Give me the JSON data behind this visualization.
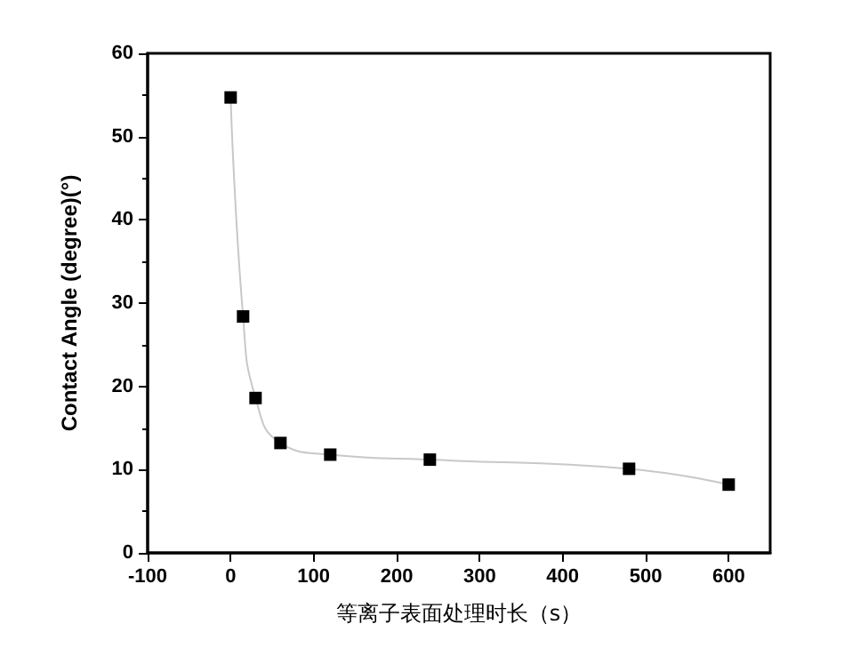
{
  "chart_data": {
    "type": "line",
    "xlabel": "等离子表面处理时长（s）",
    "ylabel": "Contact Angle (degree)(°)",
    "x": [
      0,
      15,
      30,
      60,
      120,
      240,
      480,
      600
    ],
    "series": [
      {
        "color": "#000000",
        "values": [
          54.7,
          28.4,
          18.6,
          13.2,
          11.8,
          11.2,
          10.1,
          8.2
        ]
      }
    ],
    "xlim": [
      -100,
      650
    ],
    "xticks": [
      -100,
      0,
      100,
      200,
      300,
      400,
      500,
      600
    ],
    "ylim": [
      0,
      60
    ],
    "yticks": [
      0,
      10,
      20,
      30,
      40,
      50,
      60
    ],
    "marker": "square",
    "grid": false
  }
}
